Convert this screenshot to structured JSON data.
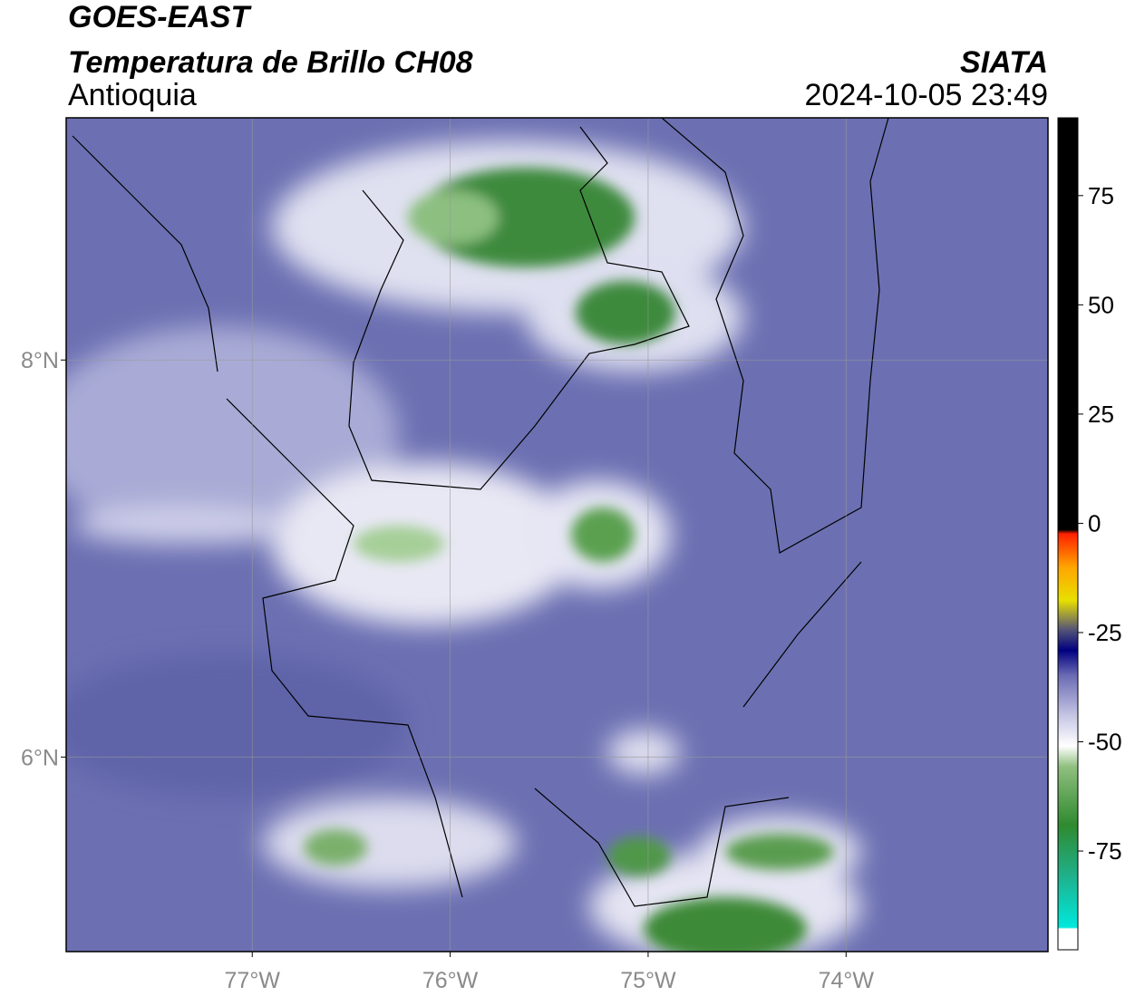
{
  "title": "GOES-EAST",
  "subtitle": "Temperatura de Brillo CH08",
  "source": "SIATA",
  "region": "Antioquia",
  "timestamp": "2024-10-05 23:49",
  "map": {
    "xlim": [
      -77.94,
      -72.98
    ],
    "ylim": [
      5.02,
      9.22
    ],
    "xticks": [
      {
        "value": -77,
        "label": "77°W"
      },
      {
        "value": -76,
        "label": "76°W"
      },
      {
        "value": -75,
        "label": "75°W"
      },
      {
        "value": -74,
        "label": "74°W"
      }
    ],
    "yticks": [
      {
        "value": 8,
        "label": "8°N"
      },
      {
        "value": 6,
        "label": "6°N"
      }
    ],
    "grid": true
  },
  "colorbar": {
    "lim": [
      -97.6,
      92.8
    ],
    "ticks": [
      75,
      50,
      25,
      0,
      -25,
      -50,
      -75
    ]
  }
}
